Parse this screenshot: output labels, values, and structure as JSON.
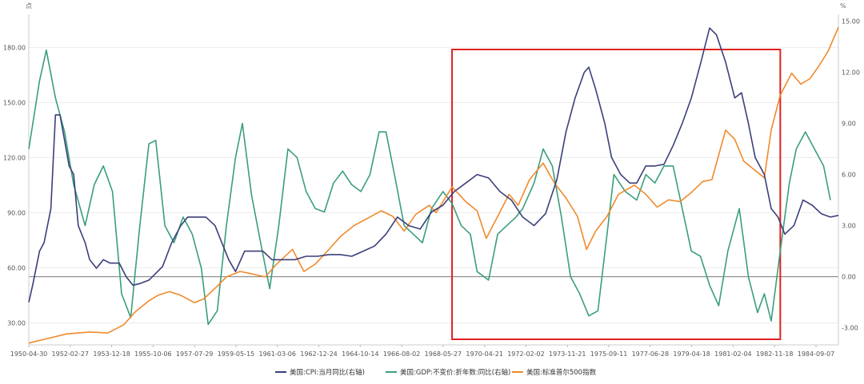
{
  "chart_data": {
    "type": "line",
    "left_axis": {
      "unit": "点",
      "ticks": [
        30,
        60,
        90,
        120,
        150,
        180
      ],
      "tick_labels": [
        "30.00",
        "60.00",
        "90.00",
        "120.00",
        "150.00",
        "180.00"
      ],
      "range": [
        18,
        198
      ]
    },
    "right_axis": {
      "unit": "%",
      "ticks": [
        -3,
        0,
        3,
        6,
        9,
        12,
        15
      ],
      "tick_labels": [
        "-3.00",
        "0.00",
        "3.00",
        "6.00",
        "9.00",
        "12.00",
        "15.00"
      ],
      "range": [
        -4,
        15.4
      ]
    },
    "x_tick_labels": [
      "1950-04-30",
      "1952-02-27",
      "1953-12-18",
      "1955-10-06",
      "1957-07-29",
      "1959-05-15",
      "1961-03-06",
      "1962-12-24",
      "1964-10-14",
      "1966-08-02",
      "1968-05-27",
      "1970-04-21",
      "1972-02-02",
      "1973-11-21",
      "1975-09-11",
      "1977-06-28",
      "1979-04-18",
      "1981-02-04",
      "1982-11-18",
      "1984-09-07"
    ],
    "x_range": [
      1950.33,
      1985.85
    ],
    "grid": true,
    "legend_position": "bottom-center",
    "highlight_box": {
      "x_from": 1968.9,
      "x_to": 1983.3,
      "color": "#e02020"
    },
    "series": [
      {
        "name": "美国:CPI:当月同比(右轴)",
        "axis": "right",
        "color": "#3a3f7a",
        "points": [
          [
            1950.33,
            -1.5
          ],
          [
            1950.5,
            -0.5
          ],
          [
            1950.8,
            1.5
          ],
          [
            1951.0,
            2.0
          ],
          [
            1951.3,
            4.0
          ],
          [
            1951.5,
            9.5
          ],
          [
            1951.7,
            9.5
          ],
          [
            1951.9,
            8.0
          ],
          [
            1952.1,
            6.5
          ],
          [
            1952.3,
            6.0
          ],
          [
            1952.5,
            3.0
          ],
          [
            1952.8,
            2.0
          ],
          [
            1953.0,
            1.0
          ],
          [
            1953.3,
            0.5
          ],
          [
            1953.6,
            1.0
          ],
          [
            1953.9,
            0.8
          ],
          [
            1954.3,
            0.8
          ],
          [
            1954.6,
            0.0
          ],
          [
            1954.9,
            -0.5
          ],
          [
            1955.2,
            -0.4
          ],
          [
            1955.6,
            -0.2
          ],
          [
            1955.9,
            0.2
          ],
          [
            1956.2,
            0.6
          ],
          [
            1956.6,
            2.0
          ],
          [
            1957.0,
            3.0
          ],
          [
            1957.3,
            3.5
          ],
          [
            1957.7,
            3.5
          ],
          [
            1958.1,
            3.5
          ],
          [
            1958.5,
            3.0
          ],
          [
            1958.8,
            2.0
          ],
          [
            1959.1,
            1.0
          ],
          [
            1959.4,
            0.3
          ],
          [
            1959.8,
            1.5
          ],
          [
            1960.2,
            1.5
          ],
          [
            1960.6,
            1.5
          ],
          [
            1961.0,
            1.0
          ],
          [
            1961.5,
            1.0
          ],
          [
            1962.0,
            1.0
          ],
          [
            1962.5,
            1.2
          ],
          [
            1963.0,
            1.2
          ],
          [
            1963.5,
            1.3
          ],
          [
            1964.0,
            1.3
          ],
          [
            1964.5,
            1.2
          ],
          [
            1965.0,
            1.5
          ],
          [
            1965.5,
            1.8
          ],
          [
            1966.0,
            2.5
          ],
          [
            1966.5,
            3.5
          ],
          [
            1967.0,
            3.0
          ],
          [
            1967.5,
            2.8
          ],
          [
            1968.0,
            3.8
          ],
          [
            1968.5,
            4.2
          ],
          [
            1969.0,
            5.0
          ],
          [
            1969.5,
            5.5
          ],
          [
            1970.0,
            6.0
          ],
          [
            1970.5,
            5.8
          ],
          [
            1971.0,
            5.0
          ],
          [
            1971.5,
            4.5
          ],
          [
            1972.0,
            3.5
          ],
          [
            1972.5,
            3.0
          ],
          [
            1973.0,
            3.7
          ],
          [
            1973.5,
            5.7
          ],
          [
            1973.9,
            8.5
          ],
          [
            1974.3,
            10.5
          ],
          [
            1974.7,
            12.0
          ],
          [
            1974.9,
            12.3
          ],
          [
            1975.2,
            11.0
          ],
          [
            1975.6,
            9.0
          ],
          [
            1975.9,
            7.0
          ],
          [
            1976.3,
            6.0
          ],
          [
            1976.7,
            5.5
          ],
          [
            1977.0,
            5.5
          ],
          [
            1977.4,
            6.5
          ],
          [
            1977.8,
            6.5
          ],
          [
            1978.2,
            6.6
          ],
          [
            1978.6,
            7.7
          ],
          [
            1979.0,
            9.0
          ],
          [
            1979.4,
            10.5
          ],
          [
            1979.8,
            12.5
          ],
          [
            1980.2,
            14.6
          ],
          [
            1980.5,
            14.2
          ],
          [
            1980.9,
            12.6
          ],
          [
            1981.3,
            10.5
          ],
          [
            1981.6,
            10.8
          ],
          [
            1981.9,
            9.0
          ],
          [
            1982.2,
            7.0
          ],
          [
            1982.6,
            6.0
          ],
          [
            1982.9,
            4.0
          ],
          [
            1983.2,
            3.5
          ],
          [
            1983.5,
            2.5
          ],
          [
            1983.9,
            3.0
          ],
          [
            1984.3,
            4.5
          ],
          [
            1984.7,
            4.2
          ],
          [
            1985.1,
            3.7
          ],
          [
            1985.5,
            3.5
          ],
          [
            1985.85,
            3.6
          ]
        ]
      },
      {
        "name": "美国:GDP:不变价:折年数:同比(右轴)",
        "axis": "right",
        "color": "#3a9e7c",
        "points": [
          [
            1950.33,
            7.5
          ],
          [
            1950.8,
            11.5
          ],
          [
            1951.1,
            13.3
          ],
          [
            1951.5,
            10.5
          ],
          [
            1951.9,
            8.5
          ],
          [
            1952.3,
            5.4
          ],
          [
            1952.8,
            3.0
          ],
          [
            1953.2,
            5.4
          ],
          [
            1953.6,
            6.5
          ],
          [
            1954.0,
            5.0
          ],
          [
            1954.4,
            -1.0
          ],
          [
            1954.8,
            -2.4
          ],
          [
            1955.2,
            3.0
          ],
          [
            1955.6,
            7.8
          ],
          [
            1955.9,
            8.0
          ],
          [
            1956.3,
            3.0
          ],
          [
            1956.7,
            2.0
          ],
          [
            1957.1,
            3.5
          ],
          [
            1957.5,
            2.5
          ],
          [
            1957.9,
            0.5
          ],
          [
            1958.2,
            -2.8
          ],
          [
            1958.6,
            -2.0
          ],
          [
            1959.0,
            3.0
          ],
          [
            1959.4,
            7.0
          ],
          [
            1959.7,
            9.0
          ],
          [
            1960.1,
            4.8
          ],
          [
            1960.5,
            2.0
          ],
          [
            1960.9,
            -0.7
          ],
          [
            1961.3,
            3.0
          ],
          [
            1961.7,
            7.5
          ],
          [
            1962.1,
            7.0
          ],
          [
            1962.5,
            5.0
          ],
          [
            1962.9,
            4.0
          ],
          [
            1963.3,
            3.8
          ],
          [
            1963.7,
            5.5
          ],
          [
            1964.1,
            6.2
          ],
          [
            1964.5,
            5.4
          ],
          [
            1964.9,
            5.0
          ],
          [
            1965.3,
            6.0
          ],
          [
            1965.7,
            8.5
          ],
          [
            1966.0,
            8.5
          ],
          [
            1966.4,
            5.8
          ],
          [
            1966.8,
            3.0
          ],
          [
            1967.2,
            2.5
          ],
          [
            1967.6,
            2.0
          ],
          [
            1968.0,
            4.0
          ],
          [
            1968.5,
            5.0
          ],
          [
            1968.9,
            4.3
          ],
          [
            1969.3,
            3.0
          ],
          [
            1969.7,
            2.5
          ],
          [
            1970.0,
            0.3
          ],
          [
            1970.5,
            -0.2
          ],
          [
            1970.9,
            2.5
          ],
          [
            1971.3,
            3.0
          ],
          [
            1971.7,
            3.5
          ],
          [
            1972.0,
            4.0
          ],
          [
            1972.5,
            5.5
          ],
          [
            1972.9,
            7.5
          ],
          [
            1973.3,
            6.5
          ],
          [
            1973.7,
            3.5
          ],
          [
            1974.1,
            0.0
          ],
          [
            1974.5,
            -1.0
          ],
          [
            1974.9,
            -2.3
          ],
          [
            1975.3,
            -2.0
          ],
          [
            1975.7,
            2.5
          ],
          [
            1976.0,
            6.0
          ],
          [
            1976.5,
            5.0
          ],
          [
            1977.0,
            4.5
          ],
          [
            1977.4,
            6.0
          ],
          [
            1977.8,
            5.5
          ],
          [
            1978.2,
            6.5
          ],
          [
            1978.6,
            6.5
          ],
          [
            1979.0,
            4.0
          ],
          [
            1979.4,
            1.5
          ],
          [
            1979.8,
            1.2
          ],
          [
            1980.2,
            -0.5
          ],
          [
            1980.6,
            -1.7
          ],
          [
            1981.0,
            1.5
          ],
          [
            1981.5,
            4.0
          ],
          [
            1981.9,
            0.0
          ],
          [
            1982.3,
            -2.1
          ],
          [
            1982.6,
            -1.0
          ],
          [
            1982.9,
            -2.6
          ],
          [
            1983.3,
            1.5
          ],
          [
            1983.7,
            5.5
          ],
          [
            1984.0,
            7.5
          ],
          [
            1984.4,
            8.5
          ],
          [
            1984.8,
            7.5
          ],
          [
            1985.2,
            6.5
          ],
          [
            1985.5,
            4.5
          ]
        ]
      },
      {
        "name": "美国:标准普尔500指数",
        "axis": "left",
        "color": "#f08a2c",
        "points": [
          [
            1950.33,
            19
          ],
          [
            1951.0,
            21
          ],
          [
            1952.0,
            24
          ],
          [
            1953.0,
            25
          ],
          [
            1953.8,
            24.5
          ],
          [
            1954.5,
            29
          ],
          [
            1955.0,
            36
          ],
          [
            1955.6,
            42
          ],
          [
            1956.0,
            45
          ],
          [
            1956.5,
            47
          ],
          [
            1957.0,
            45
          ],
          [
            1957.6,
            41
          ],
          [
            1958.0,
            43
          ],
          [
            1958.6,
            50
          ],
          [
            1959.0,
            55
          ],
          [
            1959.6,
            58
          ],
          [
            1960.0,
            57
          ],
          [
            1960.7,
            55
          ],
          [
            1961.2,
            62
          ],
          [
            1961.9,
            70
          ],
          [
            1962.4,
            58
          ],
          [
            1962.9,
            62
          ],
          [
            1963.5,
            70
          ],
          [
            1964.0,
            77
          ],
          [
            1964.6,
            83
          ],
          [
            1965.2,
            87
          ],
          [
            1965.8,
            91
          ],
          [
            1966.3,
            88
          ],
          [
            1966.8,
            80
          ],
          [
            1967.3,
            89
          ],
          [
            1967.9,
            94
          ],
          [
            1968.2,
            90
          ],
          [
            1968.9,
            104
          ],
          [
            1969.5,
            96
          ],
          [
            1970.0,
            91
          ],
          [
            1970.4,
            76
          ],
          [
            1970.9,
            88
          ],
          [
            1971.4,
            100
          ],
          [
            1971.8,
            94
          ],
          [
            1972.3,
            108
          ],
          [
            1972.9,
            117
          ],
          [
            1973.4,
            106
          ],
          [
            1973.9,
            98
          ],
          [
            1974.4,
            88
          ],
          [
            1974.8,
            70
          ],
          [
            1975.2,
            80
          ],
          [
            1975.7,
            88
          ],
          [
            1976.2,
            100
          ],
          [
            1976.9,
            105
          ],
          [
            1977.4,
            100
          ],
          [
            1977.9,
            93
          ],
          [
            1978.4,
            97
          ],
          [
            1978.9,
            96
          ],
          [
            1979.4,
            101
          ],
          [
            1979.9,
            107
          ],
          [
            1980.3,
            108
          ],
          [
            1980.9,
            135
          ],
          [
            1981.3,
            130
          ],
          [
            1981.7,
            118
          ],
          [
            1982.0,
            115
          ],
          [
            1982.6,
            109
          ],
          [
            1982.9,
            135
          ],
          [
            1983.3,
            154
          ],
          [
            1983.8,
            166
          ],
          [
            1984.2,
            160
          ],
          [
            1984.6,
            163
          ],
          [
            1985.0,
            170
          ],
          [
            1985.4,
            178
          ],
          [
            1985.85,
            191
          ]
        ]
      }
    ]
  }
}
